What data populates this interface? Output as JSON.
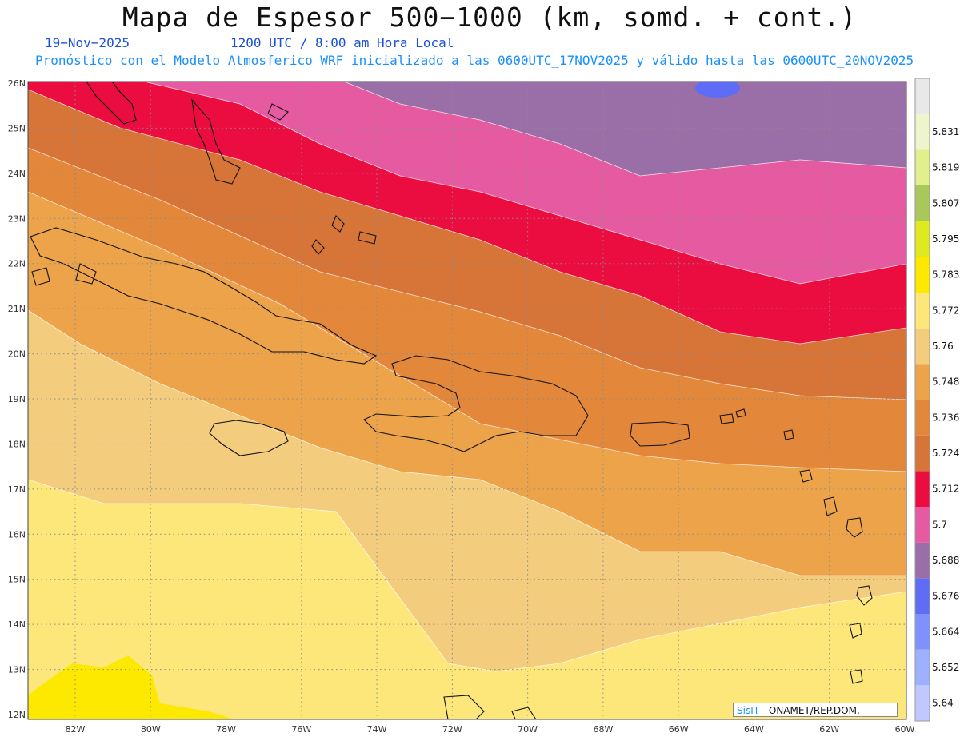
{
  "title": "Mapa de Espesor 500−1000 (km, somd. + cont.)",
  "date": "19−Nov−2025",
  "time": "1200 UTC / 8:00 am Hora Local",
  "model_info": "Pronóstico con el Modelo Atmosferico WRF inicializado a las 0600UTC_17NOV2025 y válido hasta las  0600UTC_20NOV2025",
  "credit": {
    "brand": "SisΠ",
    "separator": " – ",
    "org": "ONAMET/REP.DOM."
  },
  "lat_labels": [
    "26N",
    "25N",
    "24N",
    "23N",
    "22N",
    "21N",
    "20N",
    "19N",
    "18N",
    "17N",
    "16N",
    "15N",
    "14N",
    "13N",
    "12N"
  ],
  "lon_labels": [
    "82W",
    "80W",
    "78W",
    "76W",
    "74W",
    "72W",
    "70W",
    "68W",
    "66W",
    "64W",
    "62W",
    "60W"
  ],
  "colorbar": [
    {
      "color": "#c0c8ff",
      "label": "5.64"
    },
    {
      "color": "#9db1ff",
      "label": "5.652"
    },
    {
      "color": "#7f91ff",
      "label": "5.664"
    },
    {
      "color": "#5f6cf5",
      "label": "5.676"
    },
    {
      "color": "#9a6fa8",
      "label": "5.688"
    },
    {
      "color": "#e65aa2",
      "label": "5.7"
    },
    {
      "color": "#ec0d40",
      "label": "5.712"
    },
    {
      "color": "#d67537",
      "label": "5.724"
    },
    {
      "color": "#e3873a",
      "label": "5.736"
    },
    {
      "color": "#eca34a",
      "label": "5.748"
    },
    {
      "color": "#f3cd7d",
      "label": "5.76"
    },
    {
      "color": "#fde77b",
      "label": "5.772"
    },
    {
      "color": "#fde800",
      "label": "5.783"
    },
    {
      "color": "#dfe91f",
      "label": "5.795"
    },
    {
      "color": "#a9c85b",
      "label": "5.807"
    },
    {
      "color": "#e1f08c",
      "label": "5.819"
    },
    {
      "color": "#eef4cc",
      "label": "5.831"
    },
    {
      "color": "#e8e8e8",
      "label": ""
    }
  ]
}
